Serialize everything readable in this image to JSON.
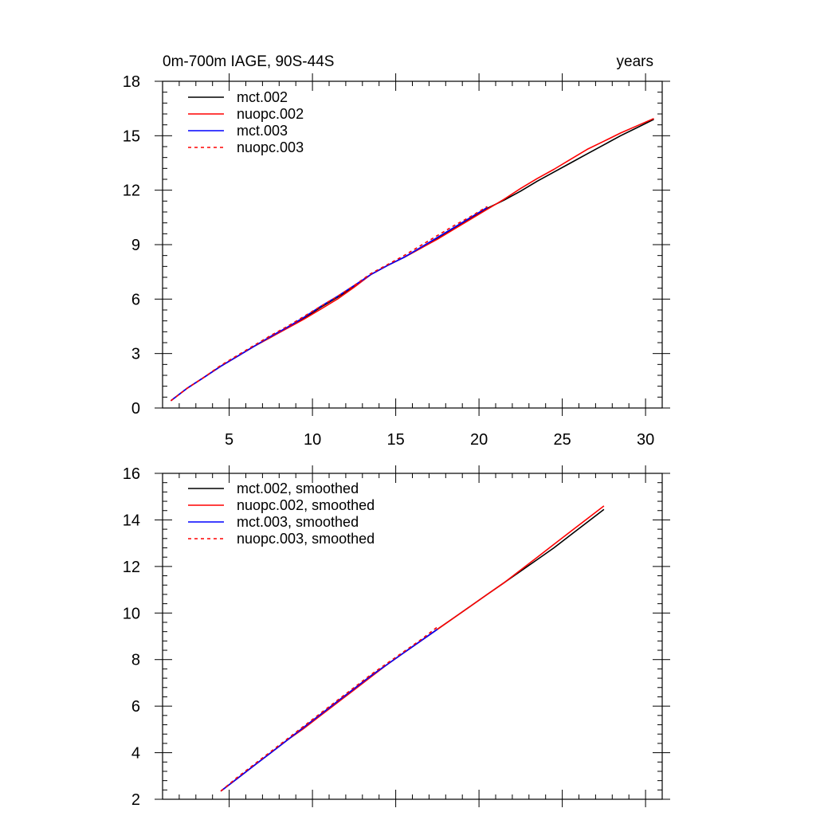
{
  "figure": {
    "title_left": "0m-700m IAGE, 90S-44S",
    "title_right": "years"
  },
  "chart_data": [
    {
      "type": "line",
      "xlim": [
        1,
        31
      ],
      "ylim": [
        0,
        18
      ],
      "xticks": [
        5,
        10,
        15,
        20,
        25,
        30
      ],
      "xtick_labels": [
        "5",
        "10",
        "15",
        "20",
        "25",
        "30"
      ],
      "yticks": [
        0,
        3,
        6,
        9,
        12,
        15,
        18
      ],
      "ytick_labels": [
        "0",
        "3",
        "6",
        "9",
        "12",
        "15",
        "18"
      ],
      "grid": false,
      "legend_position": "top-left",
      "series": [
        {
          "name": "mct.002",
          "color": "#000000",
          "dash": "solid",
          "x": [
            1.5,
            2.5,
            3.5,
            4.5,
            5.5,
            6.5,
            7.5,
            8.5,
            9.5,
            10.5,
            11.5,
            12.5,
            13.5,
            14.5,
            15.5,
            16.5,
            17.5,
            18.5,
            19.5,
            20.5,
            21.5,
            22.5,
            23.5,
            24.5,
            25.5,
            26.5,
            27.5,
            28.5,
            29.5,
            30.5
          ],
          "y": [
            0.4,
            1.1,
            1.7,
            2.3,
            2.85,
            3.4,
            3.9,
            4.45,
            4.95,
            5.55,
            6.1,
            6.7,
            7.35,
            7.85,
            8.3,
            8.8,
            9.35,
            9.9,
            10.45,
            11.0,
            11.45,
            11.95,
            12.5,
            13.0,
            13.5,
            14.0,
            14.5,
            15.0,
            15.45,
            15.9
          ]
        },
        {
          "name": "nuopc.002",
          "color": "#ff0000",
          "dash": "solid",
          "x": [
            1.5,
            2.5,
            3.5,
            4.5,
            5.5,
            6.5,
            7.5,
            8.5,
            9.5,
            10.5,
            11.5,
            12.5,
            13.5,
            14.5,
            15.5,
            16.5,
            17.5,
            18.5,
            19.5,
            20.5,
            21.5,
            22.5,
            23.5,
            24.5,
            25.5,
            26.5,
            27.5,
            28.5,
            29.5,
            30.5
          ],
          "y": [
            0.4,
            1.1,
            1.7,
            2.3,
            2.85,
            3.4,
            3.9,
            4.4,
            4.9,
            5.45,
            6.0,
            6.65,
            7.35,
            7.85,
            8.3,
            8.8,
            9.3,
            9.85,
            10.4,
            10.95,
            11.5,
            12.1,
            12.65,
            13.15,
            13.7,
            14.25,
            14.7,
            15.15,
            15.55,
            15.95
          ]
        },
        {
          "name": "mct.003",
          "color": "#0000ff",
          "dash": "solid",
          "x": [
            1.5,
            2.5,
            3.5,
            4.5,
            5.5,
            6.5,
            7.5,
            8.5,
            9.5,
            10.5,
            11.5,
            12.5,
            13.5,
            14.5,
            15.5,
            16.5,
            17.5,
            18.5,
            19.5,
            20.5
          ],
          "y": [
            0.4,
            1.1,
            1.7,
            2.3,
            2.85,
            3.4,
            3.95,
            4.45,
            5.0,
            5.6,
            6.15,
            6.75,
            7.35,
            7.85,
            8.3,
            8.85,
            9.4,
            9.95,
            10.5,
            11.05
          ]
        },
        {
          "name": "nuopc.003",
          "color": "#ff0000",
          "dash": "dashed",
          "x": [
            1.5,
            2.5,
            3.5,
            4.5,
            5.5,
            6.5,
            7.5,
            8.5,
            9.5,
            10.5,
            11.5,
            12.5,
            13.5,
            14.5,
            15.5,
            16.5,
            17.5,
            18.5,
            19.5,
            20.5
          ],
          "y": [
            0.4,
            1.1,
            1.7,
            2.35,
            2.9,
            3.45,
            4.0,
            4.5,
            5.05,
            5.6,
            6.15,
            6.75,
            7.4,
            7.9,
            8.4,
            8.95,
            9.5,
            10.05,
            10.55,
            11.1
          ]
        }
      ]
    },
    {
      "type": "line",
      "xlim": [
        1,
        31
      ],
      "ylim": [
        2,
        16
      ],
      "xticks": [
        5,
        10,
        15,
        20,
        25,
        30
      ],
      "xtick_labels": [],
      "yticks": [
        2,
        4,
        6,
        8,
        10,
        12,
        14,
        16
      ],
      "ytick_labels": [
        "2",
        "4",
        "6",
        "8",
        "10",
        "12",
        "14",
        "16"
      ],
      "grid": false,
      "legend_position": "top-left",
      "series": [
        {
          "name": "mct.002, smoothed",
          "color": "#000000",
          "dash": "solid",
          "x": [
            4.5,
            5.5,
            6.5,
            7.5,
            8.5,
            9.5,
            10.5,
            11.5,
            12.5,
            13.5,
            14.5,
            15.5,
            16.5,
            17.5,
            18.5,
            19.5,
            20.5,
            21.5,
            22.5,
            23.5,
            24.5,
            25.5,
            26.5,
            27.5
          ],
          "y": [
            2.35,
            2.9,
            3.45,
            4.0,
            4.55,
            5.1,
            5.65,
            6.2,
            6.75,
            7.3,
            7.8,
            8.3,
            8.8,
            9.3,
            9.8,
            10.3,
            10.8,
            11.3,
            11.8,
            12.3,
            12.8,
            13.35,
            13.9,
            14.45
          ]
        },
        {
          "name": "nuopc.002, smoothed",
          "color": "#ff0000",
          "dash": "solid",
          "x": [
            4.5,
            5.5,
            6.5,
            7.5,
            8.5,
            9.5,
            10.5,
            11.5,
            12.5,
            13.5,
            14.5,
            15.5,
            16.5,
            17.5,
            18.5,
            19.5,
            20.5,
            21.5,
            22.5,
            23.5,
            24.5,
            25.5,
            26.5,
            27.5
          ],
          "y": [
            2.35,
            2.9,
            3.45,
            4.0,
            4.55,
            5.05,
            5.6,
            6.15,
            6.7,
            7.25,
            7.8,
            8.3,
            8.8,
            9.3,
            9.8,
            10.3,
            10.8,
            11.3,
            11.85,
            12.4,
            12.95,
            13.5,
            14.05,
            14.6
          ]
        },
        {
          "name": "mct.003, smoothed",
          "color": "#0000ff",
          "dash": "solid",
          "x": [
            4.5,
            5.5,
            6.5,
            7.5,
            8.5,
            9.5,
            10.5,
            11.5,
            12.5,
            13.5,
            14.5,
            15.5,
            16.5,
            17.5
          ],
          "y": [
            2.35,
            2.9,
            3.45,
            4.0,
            4.55,
            5.1,
            5.65,
            6.2,
            6.75,
            7.3,
            7.8,
            8.3,
            8.8,
            9.3
          ]
        },
        {
          "name": "nuopc.003, smoothed",
          "color": "#ff0000",
          "dash": "dashed",
          "x": [
            4.5,
            5.5,
            6.5,
            7.5,
            8.5,
            9.5,
            10.5,
            11.5,
            12.5,
            13.5,
            14.5,
            15.5,
            16.5,
            17.5
          ],
          "y": [
            2.35,
            2.95,
            3.5,
            4.05,
            4.6,
            5.15,
            5.7,
            6.25,
            6.8,
            7.35,
            7.85,
            8.35,
            8.85,
            9.4
          ]
        }
      ]
    }
  ]
}
